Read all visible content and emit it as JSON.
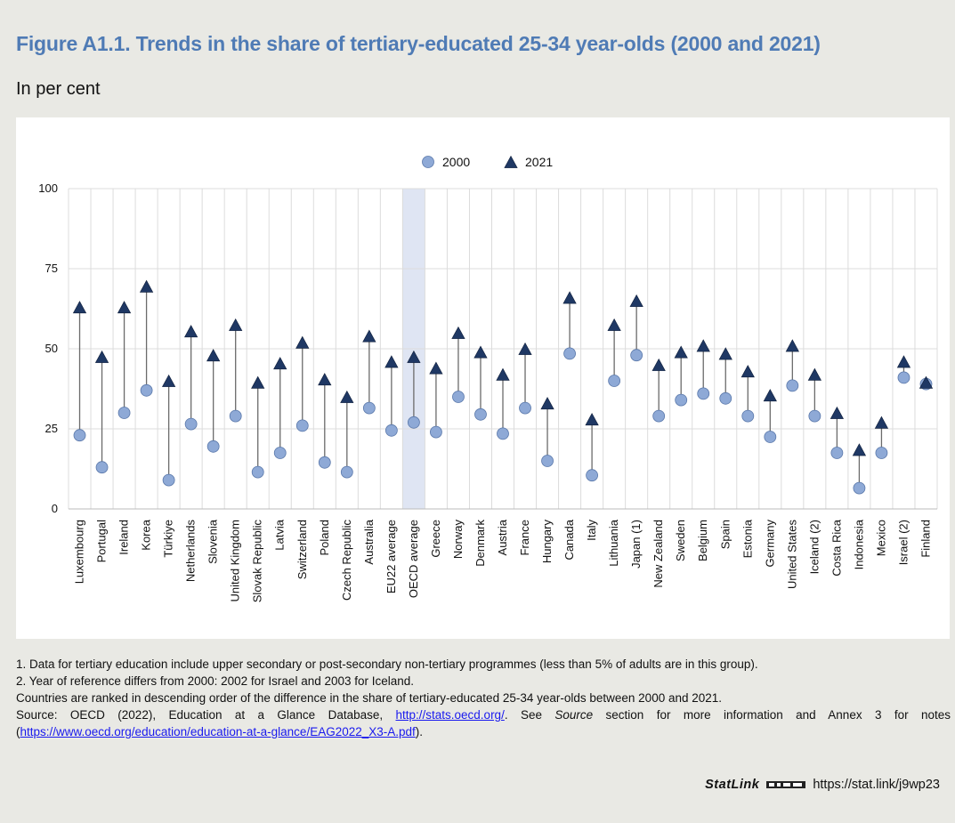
{
  "figure": {
    "title": "Figure A1.1. Trends in the share of tertiary-educated 25-34 year-olds (2000 and 2021)",
    "subtitle": "In per cent"
  },
  "chart_data": {
    "type": "scatter",
    "categories": [
      "Luxembourg",
      "Portugal",
      "Ireland",
      "Korea",
      "Türkiye",
      "Netherlands",
      "Slovenia",
      "United Kingdom",
      "Slovak Republic",
      "Latvia",
      "Switzerland",
      "Poland",
      "Czech Republic",
      "Australia",
      "EU22 average",
      "OECD average",
      "Greece",
      "Norway",
      "Denmark",
      "Austria",
      "France",
      "Hungary",
      "Canada",
      "Italy",
      "Lithuania",
      "Japan (1)",
      "New Zealand",
      "Sweden",
      "Belgium",
      "Spain",
      "Estonia",
      "Germany",
      "United States",
      "Iceland (2)",
      "Costa Rica",
      "Indonesia",
      "Mexico",
      "Israel (2)",
      "Finland"
    ],
    "series": [
      {
        "name": "2000",
        "marker": "circle",
        "color": "#8ea9d6",
        "values": [
          23,
          13,
          30,
          37,
          9,
          26.5,
          19.5,
          29,
          11.5,
          17.5,
          26,
          14.5,
          11.5,
          31.5,
          24.5,
          27,
          24,
          35,
          29.5,
          23.5,
          31.5,
          15,
          48.5,
          10.5,
          40,
          48,
          29,
          34,
          36,
          34.5,
          29,
          22.5,
          38.5,
          29,
          17.5,
          6.5,
          17.5,
          41,
          39
        ]
      },
      {
        "name": "2021",
        "marker": "triangle",
        "color": "#1f3864",
        "values": [
          63,
          47.5,
          63,
          69.5,
          40,
          55.5,
          48,
          57.5,
          39.5,
          45.5,
          52,
          40.5,
          35,
          54,
          46,
          47.5,
          44,
          55,
          49,
          42,
          50,
          33,
          66,
          28,
          57.5,
          65,
          45,
          49,
          51,
          48.5,
          43,
          35.5,
          51,
          42,
          30,
          18.5,
          27,
          46,
          39.5
        ]
      }
    ],
    "ylim": [
      0,
      100
    ],
    "yticks": [
      0,
      25,
      50,
      75,
      100
    ],
    "highlight_category": "OECD average",
    "grid": true,
    "legend": "top-center"
  },
  "notes": {
    "note1": "1. Data for tertiary education include upper secondary or post-secondary non-tertiary programmes (less than 5% of adults are in this group).",
    "note2": "2. Year of reference differs from 2000: 2002 for Israel and 2003 for Iceland.",
    "ranking": "Countries are ranked in descending order of the difference in the share of tertiary-educated 25-34 year-olds between 2000 and 2021.",
    "source_prefix": "Source: OECD (2022), Education at a Glance Database, ",
    "source_link": "http://stats.oecd.org/",
    "source_middle1": ". See ",
    "source_italic": "Source",
    "source_middle2": " section for more information and Annex 3 for notes (",
    "annex_link": "https://www.oecd.org/education/education-at-a-glance/EAG2022_X3-A.pdf",
    "source_end": ")."
  },
  "statlink": {
    "brand": "StatLink",
    "url": "https://stat.link/j9wp23"
  }
}
